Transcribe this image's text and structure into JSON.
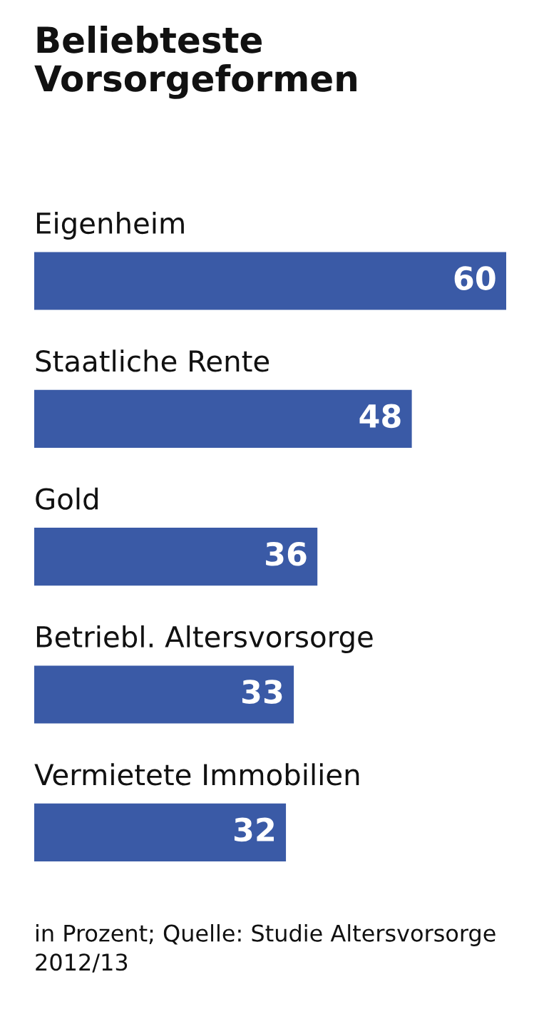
{
  "chart_data": {
    "type": "bar",
    "orientation": "horizontal",
    "title": "Beliebteste\nVorsorgeformen",
    "categories": [
      "Eigenheim",
      "Staatliche Rente",
      "Gold",
      "Betriebl. Altersvorsorge",
      "Vermietete Immobilien"
    ],
    "values": [
      60,
      48,
      36,
      33,
      32
    ],
    "color": "#3a5aa6",
    "data_labels": true,
    "annotations": [
      "in Prozent; Quelle: Studie Altersvorsorge 2012/13"
    ]
  }
}
